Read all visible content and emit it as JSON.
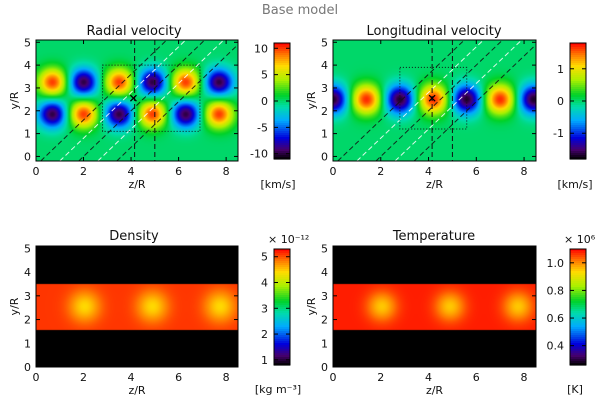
{
  "figure_title": "Base model",
  "chart_data": [
    {
      "type": "heatmap",
      "title": "Radial velocity",
      "xlabel": "z/R",
      "ylabel": "y/R",
      "xlim": [
        0,
        8.5
      ],
      "ylim": [
        -0.2,
        5.1
      ],
      "xticks": [
        0,
        2,
        4,
        6,
        8
      ],
      "yticks": [
        0,
        1,
        2,
        3,
        4,
        5
      ],
      "x_tick_labels": [
        "0",
        "2",
        "4",
        "6",
        "8"
      ],
      "y_tick_labels": [
        "0",
        "1",
        "2",
        "3",
        "4",
        "5"
      ],
      "colorbar": {
        "range": [
          -11,
          11
        ],
        "ticks": [
          10,
          5,
          0,
          -5,
          -10
        ],
        "tick_labels": [
          "10",
          "5",
          "0",
          "-5",
          "-10"
        ],
        "unit": "[km/s]",
        "multiplier": ""
      },
      "pattern": {
        "kind": "checker",
        "z_centers": [
          0.7,
          2.0,
          3.5,
          4.9,
          6.3,
          7.7
        ],
        "y_centers": [
          3.25,
          1.85
        ],
        "amplitude": [
          10,
          -10
        ],
        "blob_width": 0.42
      },
      "overlays": {
        "dotted_box": {
          "x": [
            2.8,
            6.9
          ],
          "y": [
            1.1,
            4.0
          ]
        },
        "vertical_dashed_z": [
          4.15,
          5.0
        ],
        "cross_marker": [
          4.1,
          2.55
        ],
        "dashed_diagonal_offsets": [
          -3.6,
          -2.8,
          -2.0,
          -1.2,
          -0.4
        ]
      }
    },
    {
      "type": "heatmap",
      "title": "Longitudinal velocity",
      "xlabel": "z/R",
      "ylabel": "y/R",
      "xlim": [
        0,
        8.5
      ],
      "ylim": [
        -0.2,
        5.1
      ],
      "xticks": [
        0,
        2,
        4,
        6,
        8
      ],
      "yticks": [
        0,
        1,
        2,
        3,
        4,
        5
      ],
      "x_tick_labels": [
        "0",
        "2",
        "4",
        "6",
        "8"
      ],
      "y_tick_labels": [
        "0",
        "1",
        "2",
        "3",
        "4",
        "5"
      ],
      "colorbar": {
        "range": [
          -1.8,
          1.8
        ],
        "ticks": [
          1,
          0,
          -1
        ],
        "tick_labels": [
          "1",
          "0",
          "-1"
        ],
        "unit": "[km/s]",
        "multiplier": ""
      },
      "pattern": {
        "kind": "row",
        "z_centers": [
          0.0,
          1.4,
          2.8,
          4.2,
          5.6,
          7.0,
          8.4
        ],
        "y_center": 2.5,
        "amplitude": [
          -1.7,
          1.7
        ],
        "blob_width": 0.45
      },
      "overlays": {
        "dotted_box": {
          "x": [
            2.8,
            5.6
          ],
          "y": [
            1.2,
            3.9
          ]
        },
        "vertical_dashed_z": [
          4.15,
          5.0
        ],
        "cross_marker": [
          4.15,
          2.55
        ],
        "dashed_diagonal_offsets": [
          -3.6,
          -2.8,
          -2.0,
          -1.2,
          -0.4
        ]
      }
    },
    {
      "type": "heatmap",
      "title": "Density",
      "xlabel": "z/R",
      "ylabel": "y/R",
      "xlim": [
        0,
        8.5
      ],
      "ylim": [
        0,
        5.1
      ],
      "xticks": [
        0,
        2,
        4,
        6,
        8
      ],
      "yticks": [
        0,
        1,
        2,
        3,
        4,
        5
      ],
      "x_tick_labels": [
        "0",
        "2",
        "4",
        "6",
        "8"
      ],
      "y_tick_labels": [
        "0",
        "1",
        "2",
        "3",
        "4",
        "5"
      ],
      "colorbar": {
        "range": [
          0.8,
          5.3
        ],
        "ticks": [
          5,
          4,
          3,
          2,
          1
        ],
        "tick_labels": [
          "5",
          "4",
          "3",
          "2",
          "1"
        ],
        "unit": "[kg m⁻³]",
        "multiplier": "× 10⁻¹²"
      },
      "pattern": {
        "kind": "slab",
        "slab_y": [
          1.55,
          3.5
        ],
        "inside_value": 5.1,
        "outside_value": 0.8,
        "bump_z": [
          2.05,
          4.9,
          7.75
        ],
        "bump_y": 2.55,
        "bump_width": 0.45
      }
    },
    {
      "type": "heatmap",
      "title": "Temperature",
      "xlabel": "z/R",
      "ylabel": "y/R",
      "xlim": [
        0,
        8.5
      ],
      "ylim": [
        0,
        5.1
      ],
      "xticks": [
        0,
        2,
        4,
        6,
        8
      ],
      "yticks": [
        0,
        1,
        2,
        3,
        4,
        5
      ],
      "x_tick_labels": [
        "0",
        "2",
        "4",
        "6",
        "8"
      ],
      "y_tick_labels": [
        "0",
        "1",
        "2",
        "3",
        "4",
        "5"
      ],
      "colorbar": {
        "range": [
          0.26,
          1.1
        ],
        "ticks": [
          1.0,
          0.8,
          0.6,
          0.4
        ],
        "tick_labels": [
          "1.0",
          "0.8",
          "0.6",
          "0.4"
        ],
        "unit": "[K]",
        "multiplier": "× 10⁶"
      },
      "pattern": {
        "kind": "slab",
        "slab_y": [
          1.55,
          3.5
        ],
        "inside_value": 1.08,
        "outside_value": 0.26,
        "bump_z": [
          2.05,
          4.9,
          7.75
        ],
        "bump_y": 2.55,
        "bump_width": 0.42
      }
    }
  ]
}
